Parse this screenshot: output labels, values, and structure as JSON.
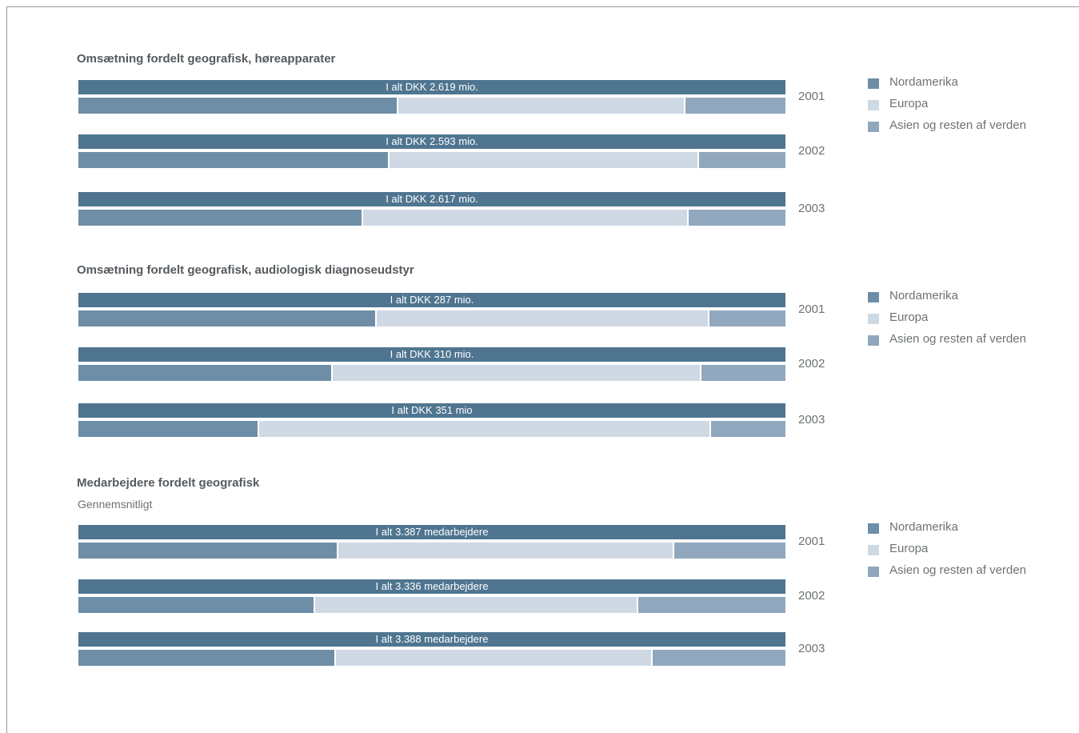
{
  "colors": {
    "total_bar": "#4f7590",
    "nordamerika": "#6e8ea8",
    "europa": "#cfd9e3",
    "asien": "#91a7bd"
  },
  "chart_data": [
    {
      "type": "bar",
      "stacked": true,
      "orientation": "horizontal",
      "title": "Omsætning fordelt geografisk, høreapparater",
      "subtitle": "",
      "categories": [
        "2001",
        "2002",
        "2003"
      ],
      "totals": [
        "I alt DKK 2.619 mio.",
        "I alt DKK 2.593 mio.",
        "I alt DKK 2.617 mio."
      ],
      "series": [
        {
          "name": "Nordamerika",
          "values": [
            45.3,
            44.0,
            40.3
          ]
        },
        {
          "name": "Europa",
          "values": [
            40.6,
            43.8,
            46.0
          ]
        },
        {
          "name": "Asien og resten af verden",
          "values": [
            14.1,
            12.2,
            13.7
          ]
        }
      ],
      "unit": "percent of total",
      "legend": [
        "Nordamerika",
        "Europa",
        "Asien og resten af verden"
      ],
      "legend_position": "right"
    },
    {
      "type": "bar",
      "stacked": true,
      "orientation": "horizontal",
      "title": "Omsætning fordelt geografisk, audiologisk diagnoseudstyr",
      "subtitle": "",
      "categories": [
        "2001",
        "2002",
        "2003"
      ],
      "totals": [
        "I alt DKK 287 mio.",
        "I alt DKK 310 mio.",
        "I alt DKK 351 mio"
      ],
      "series": [
        {
          "name": "Nordamerika",
          "values": [
            42.2,
            36.0,
            25.6
          ]
        },
        {
          "name": "Europa",
          "values": [
            47.1,
            52.1,
            63.9
          ]
        },
        {
          "name": "Asien og resten af verden",
          "values": [
            10.7,
            11.9,
            10.5
          ]
        }
      ],
      "unit": "percent of total",
      "legend": [
        "Nordamerika",
        "Europa",
        "Asien og resten af verden"
      ],
      "legend_position": "right"
    },
    {
      "type": "bar",
      "stacked": true,
      "orientation": "horizontal",
      "title": "Medarbejdere fordelt geografisk",
      "subtitle": "Gennemsnitligt",
      "categories": [
        "2001",
        "2002",
        "2003"
      ],
      "totals": [
        "I alt 3.387 medarbejdere",
        "I alt 3.336 medarbejdere",
        "I alt 3.388 medarbejdere"
      ],
      "series": [
        {
          "name": "Nordamerika",
          "values": [
            36.8,
            33.5,
            36.4
          ]
        },
        {
          "name": "Europa",
          "values": [
            47.5,
            45.7,
            44.8
          ]
        },
        {
          "name": "Asien og resten af verden",
          "values": [
            15.7,
            20.8,
            18.8
          ]
        }
      ],
      "unit": "percent of total",
      "legend": [
        "Nordamerika",
        "Europa",
        "Asien og resten af verden"
      ],
      "legend_position": "right"
    }
  ]
}
